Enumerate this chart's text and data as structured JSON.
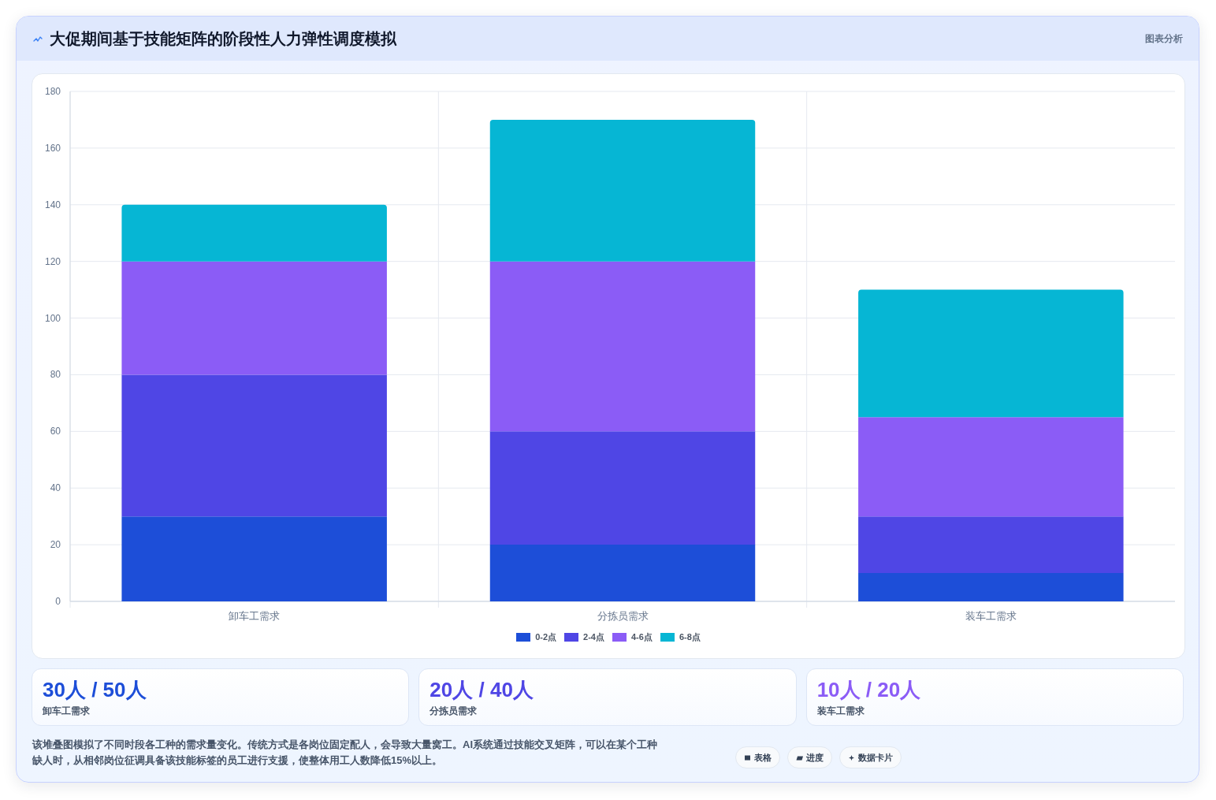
{
  "chart_data": [
    {
      "type": "bar",
      "title": "大促期间基于技能矩阵的阶段性人力弹性调度模拟",
      "categories": [
        "卸车工需求",
        "分拣员需求",
        "装车工需求"
      ],
      "series": [
        {
          "name": "0-2点",
          "color": "#1d4ed8",
          "values": [
            30,
            20,
            10
          ]
        },
        {
          "name": "2-4点",
          "color": "#4f46e5",
          "values": [
            50,
            40,
            20
          ]
        },
        {
          "name": "4-6点",
          "color": "#8b5cf6",
          "values": [
            40,
            60,
            35
          ]
        },
        {
          "name": "6-8点",
          "color": "#06b6d4",
          "values": [
            20,
            50,
            45
          ]
        }
      ],
      "stacked": true,
      "ylim": [
        0,
        180
      ],
      "yticks": [
        0,
        20,
        40,
        60,
        80,
        100,
        120,
        140,
        160,
        180
      ],
      "grid": true,
      "legend": "bottom",
      "annotations": [
        "图表分析",
        "该堆叠图模拟了不同时段各工种的需求量变化。传统方式是各岗位固定配人，会导致大量窝工。AI系统通过技能交叉矩阵，可以在某个工种缺人时，从相邻岗位征调具备该技能标签的员工进行支援，使整体用工人数降低15%以上。"
      ]
    },
    {
      "type": "other",
      "title": "30人 / 50人",
      "subtitle": "卸车工需求",
      "color": "#1d4ed8"
    },
    {
      "type": "other",
      "title": "20人 / 40人",
      "subtitle": "分拣员需求",
      "color": "#4f46e5"
    },
    {
      "type": "other",
      "title": "10人 / 20人",
      "subtitle": "装车工需求",
      "color": "#8b5cf6"
    },
    {
      "type": "other",
      "annotations": [
        "表格",
        "进度",
        "数据卡片"
      ]
    }
  ]
}
